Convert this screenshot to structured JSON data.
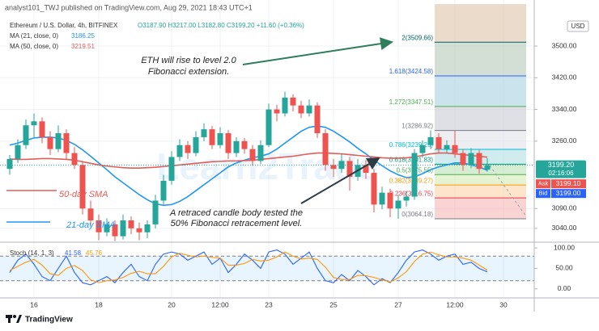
{
  "header": {
    "publisher": "analyst101_TWJ published on TradingView.com, Aug 29, 2021 18:43 UTC+1",
    "symbol": "Ethereum / U.S. Dollar, 4h, BITFINEX",
    "ohlc": "O3187.90 H3217.00 L3182.80 C3199.20 +11.60 (+0.36%)",
    "currency": "USD",
    "watermark": "Learn2Trade"
  },
  "footer": {
    "brand": "TradingView"
  },
  "chart_data": [
    {
      "type": "candlestick",
      "categories": [
        null,
        null,
        null,
        "16",
        null,
        null,
        null,
        null,
        null,
        null,
        null,
        "18",
        null,
        null,
        null,
        null,
        null,
        null,
        null,
        null,
        "20",
        null,
        null,
        null,
        null,
        null,
        "12:00",
        null,
        null,
        null,
        null,
        null,
        "23",
        null,
        null,
        null,
        null,
        null,
        null,
        null,
        "25",
        null,
        null,
        null,
        null,
        null,
        null,
        null,
        "27",
        null,
        null,
        null,
        null,
        null,
        null,
        "12:00",
        null,
        null,
        null,
        null,
        null,
        "30"
      ],
      "open": [
        3190,
        3215,
        3250,
        3300,
        3310,
        3270,
        3240,
        3280,
        3230,
        3200,
        3090,
        3060,
        3030,
        3050,
        3020,
        3060,
        3040,
        3030,
        3050,
        3110,
        3160,
        3220,
        3250,
        3230,
        3270,
        3290,
        3250,
        3280,
        3230,
        3260,
        3240,
        3210,
        3250,
        3340,
        3330,
        3370,
        3350,
        3330,
        3350,
        3280,
        3200,
        3190,
        3210,
        3170,
        3200,
        3180,
        3100,
        3130,
        3090,
        3110,
        3120,
        3230,
        3250,
        3270,
        3240,
        3250,
        3230,
        3200,
        3230,
        3187.9,
        null,
        null
      ],
      "high": [
        3225,
        3265,
        3315,
        3330,
        3320,
        3285,
        3300,
        3290,
        3245,
        3210,
        3110,
        3075,
        3065,
        3060,
        3075,
        3070,
        3055,
        3060,
        3125,
        3175,
        3235,
        3265,
        3260,
        3285,
        3305,
        3298,
        3295,
        3288,
        3270,
        3268,
        3250,
        3262,
        3355,
        3352,
        3385,
        3378,
        3362,
        3365,
        3358,
        3290,
        3215,
        3228,
        3220,
        3215,
        3212,
        3190,
        3145,
        3140,
        3125,
        3135,
        3240,
        3262,
        3287,
        3280,
        3262,
        3286.92,
        3240,
        3242,
        3238,
        3217,
        null,
        null
      ],
      "low": [
        3175,
        3205,
        3240,
        3270,
        3255,
        3225,
        3232,
        3215,
        3190,
        3075,
        3045,
        3010,
        3020,
        3008,
        3012,
        3025,
        3010,
        3015,
        3040,
        3100,
        3150,
        3210,
        3215,
        3222,
        3260,
        3240,
        3242,
        3215,
        3220,
        3228,
        3198,
        3202,
        3245,
        3310,
        3322,
        3335,
        3318,
        3322,
        3268,
        3185,
        3170,
        3180,
        3135,
        3160,
        3165,
        3080,
        3088,
        3068,
        3064.18,
        3095,
        3112,
        3218,
        3240,
        3228,
        3230,
        3218,
        3185,
        3192,
        3178,
        3182.8,
        null,
        null
      ],
      "close": [
        3215,
        3250,
        3300,
        3310,
        3270,
        3240,
        3280,
        3230,
        3200,
        3090,
        3060,
        3030,
        3050,
        3020,
        3060,
        3040,
        3030,
        3050,
        3110,
        3160,
        3220,
        3250,
        3230,
        3270,
        3290,
        3250,
        3280,
        3230,
        3260,
        3240,
        3210,
        3250,
        3340,
        3330,
        3370,
        3350,
        3330,
        3350,
        3280,
        3200,
        3190,
        3210,
        3170,
        3200,
        3180,
        3100,
        3130,
        3090,
        3110,
        3120,
        3230,
        3250,
        3270,
        3240,
        3250,
        3230,
        3200,
        3230,
        3190,
        3199.2,
        null,
        null
      ],
      "up_color": "#26a69a",
      "down_color": "#ef5350",
      "series": [
        {
          "name": "MA (21, close, 0)",
          "last_label": "3186.25",
          "color": "#2196f3",
          "values": [
            3250,
            3255,
            3262,
            3268,
            3270,
            3270,
            3268,
            3262,
            3252,
            3238,
            3222,
            3205,
            3188,
            3170,
            3155,
            3140,
            3125,
            3112,
            3102,
            3098,
            3100,
            3108,
            3120,
            3135,
            3150,
            3165,
            3180,
            3195,
            3205,
            3212,
            3218,
            3222,
            3228,
            3240,
            3255,
            3270,
            3285,
            3295,
            3298,
            3295,
            3285,
            3272,
            3258,
            3242,
            3228,
            3212,
            3198,
            3185,
            3175,
            3168,
            3170,
            3178,
            3188,
            3195,
            3200,
            3205,
            3205,
            3200,
            3195,
            3186.25,
            null,
            null
          ]
        },
        {
          "name": "MA (50, close, 0)",
          "last_label": "3219.51",
          "color": "#e35d58",
          "values": [
            3215,
            3214,
            3214,
            3215,
            3216,
            3216,
            3215,
            3214,
            3212,
            3208,
            3204,
            3200,
            3197,
            3195,
            3193,
            3192,
            3192,
            3193,
            3194,
            3196,
            3198,
            3200,
            3202,
            3204,
            3206,
            3208,
            3209,
            3210,
            3210,
            3211,
            3212,
            3214,
            3216,
            3218,
            3220,
            3222,
            3225,
            3228,
            3230,
            3230,
            3229,
            3228,
            3226,
            3224,
            3222,
            3220,
            3218,
            3217,
            3217,
            3218,
            3220,
            3224,
            3228,
            3230,
            3230,
            3228,
            3226,
            3224,
            3222,
            3219.51,
            null,
            null
          ]
        }
      ],
      "ylim": [
        3005,
        3606
      ],
      "yticks": [
        {
          "value": 3040,
          "label": "3040.00"
        },
        {
          "value": 3090,
          "label": "3090.00"
        },
        {
          "value": 3260,
          "label": "3260.00"
        },
        {
          "value": 3340,
          "label": "3340.00"
        },
        {
          "value": 3420,
          "label": "3420.00"
        },
        {
          "value": 3500,
          "label": "3500.00"
        }
      ],
      "grid": true,
      "fib": [
        {
          "label": "0(3064.18)",
          "value": 3064.18,
          "color": "#787b86",
          "fill": "#f7b6b6"
        },
        {
          "label": "0.236(3116.75)",
          "value": 3116.75,
          "color": "#f23645",
          "fill": "#fbd3a8"
        },
        {
          "label": "0.382(3149.27)",
          "value": 3149.27,
          "color": "#ff9800",
          "fill": "#d5ebb4"
        },
        {
          "label": "0.5(3175.55)",
          "value": 3175.55,
          "color": "#4caf50",
          "fill": "#b9e2b6"
        },
        {
          "label": "0.618(3201.83)",
          "value": 3201.83,
          "color": "#089981",
          "fill": "#b3dfe3"
        },
        {
          "label": "0.786(3239.25)",
          "value": 3239.25,
          "color": "#00bcd4",
          "fill": "#e0e3ea"
        },
        {
          "label": "1(3286.92)",
          "value": 3286.92,
          "color": "#787b86",
          "fill": "#c9ccd3"
        },
        {
          "label": "1.272(3347.51)",
          "value": 3347.51,
          "color": "#4caf50",
          "fill": "#a9d1df"
        },
        {
          "label": "1.618(3424.58)",
          "value": 3424.58,
          "color": "#2962ff",
          "fill": "#b5c9b9"
        },
        {
          "label": "2(3509.66)",
          "value": 3509.66,
          "color": "#006064",
          "fill": "#ddc3a8"
        }
      ],
      "annotations": {
        "eth": [
          "ETH will rise to level 2.0",
          "Fibonacci extension."
        ],
        "retrace": [
          "A retraced candle body tested the",
          "50% Fibonacci retracement level."
        ],
        "sma50": "50-day SMA",
        "sma21": "21-day SMA"
      },
      "price_labels": [
        {
          "label": "3199.20",
          "value": 3199.2,
          "sub": "02:16:06",
          "color": "#26a69a"
        },
        {
          "tag": "Ask",
          "label": "3199.10",
          "value": 3199.1,
          "color": "#ef5350"
        },
        {
          "tag": "Bid",
          "label": "3199.00",
          "value": 3199.0,
          "color": "#2962ff"
        }
      ]
    },
    {
      "type": "line",
      "title": "Stoch (14, 1, 3)",
      "series": [
        {
          "last_label": "41.58",
          "color": "#2962ff",
          "values": [
            40,
            70,
            85,
            60,
            30,
            20,
            50,
            80,
            40,
            15,
            10,
            20,
            30,
            15,
            40,
            60,
            30,
            20,
            60,
            85,
            90,
            85,
            70,
            80,
            90,
            60,
            75,
            40,
            60,
            85,
            70,
            50,
            90,
            95,
            85,
            60,
            75,
            90,
            50,
            20,
            15,
            35,
            20,
            45,
            30,
            10,
            25,
            15,
            40,
            70,
            90,
            95,
            85,
            70,
            80,
            85,
            60,
            65,
            50,
            41.58,
            null,
            null
          ]
        },
        {
          "last_label": "45.76",
          "color": "#ff9800",
          "values": [
            45,
            55,
            65,
            72,
            58,
            37,
            33,
            50,
            57,
            45,
            22,
            15,
            20,
            22,
            28,
            38,
            43,
            37,
            37,
            55,
            78,
            87,
            82,
            78,
            80,
            77,
            75,
            58,
            58,
            62,
            72,
            68,
            70,
            78,
            90,
            80,
            73,
            75,
            72,
            53,
            28,
            23,
            23,
            33,
            32,
            28,
            22,
            17,
            27,
            42,
            67,
            85,
            90,
            83,
            78,
            78,
            75,
            70,
            58,
            45.76,
            null,
            null
          ]
        }
      ],
      "ylim": [
        -20,
        110
      ],
      "yticks": [
        {
          "value": 0,
          "label": "0.00"
        },
        {
          "value": 50,
          "label": "50.00"
        },
        {
          "value": 100,
          "label": "100.00"
        }
      ],
      "band": [
        20,
        80
      ],
      "band_color": "#2196f3",
      "grid": true
    }
  ]
}
